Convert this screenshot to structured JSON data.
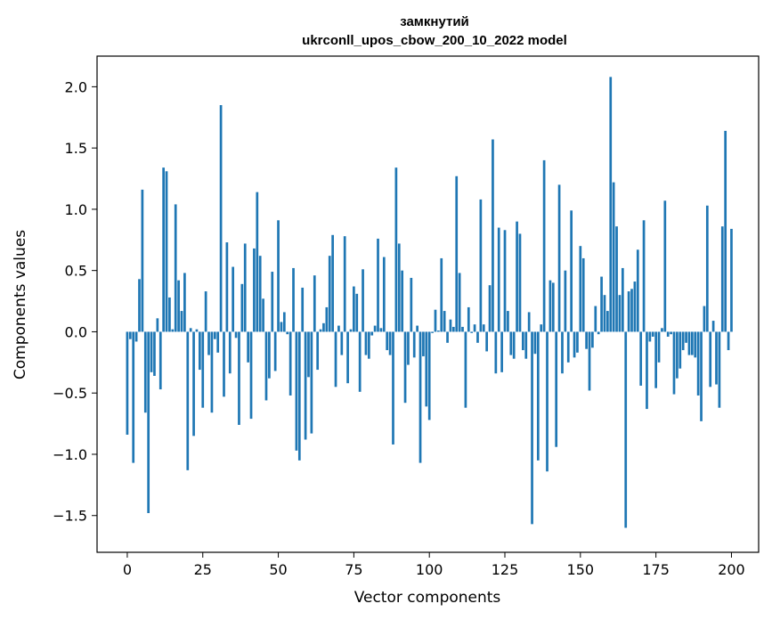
{
  "chart_data": {
    "type": "bar",
    "title_lines": [
      "замкнутий",
      "ukrconll_upos_cbow_200_10_2022 model"
    ],
    "xlabel": "Vector components",
    "ylabel": "Components values",
    "xlim": [
      -10,
      209
    ],
    "ylim": [
      -1.8,
      2.25
    ],
    "xticks": [
      0,
      25,
      50,
      75,
      100,
      125,
      150,
      175,
      200
    ],
    "yticks": [
      -1.5,
      -1.0,
      -0.5,
      0.0,
      0.5,
      1.0,
      1.5,
      2.0
    ],
    "ytick_labels": [
      "−1.5",
      "−1.0",
      "−0.5",
      "0.0",
      "0.5",
      "1.0",
      "1.5",
      "2.0"
    ],
    "bar_color": "#1f77b4",
    "grid": false,
    "x_start": 0,
    "values": [
      -0.84,
      -0.06,
      -1.07,
      -0.08,
      0.43,
      1.16,
      -0.66,
      -1.48,
      -0.33,
      -0.36,
      0.11,
      -0.47,
      1.34,
      1.31,
      0.28,
      0.02,
      1.04,
      0.42,
      0.17,
      0.48,
      -1.13,
      0.03,
      -0.85,
      0.02,
      -0.31,
      -0.62,
      0.33,
      -0.19,
      -0.66,
      -0.06,
      -0.17,
      1.85,
      -0.53,
      0.73,
      -0.34,
      0.53,
      -0.05,
      -0.76,
      0.39,
      0.72,
      -0.25,
      -0.71,
      0.68,
      1.14,
      0.62,
      0.27,
      -0.56,
      -0.38,
      0.49,
      -0.32,
      0.91,
      0.08,
      0.16,
      -0.02,
      -0.52,
      0.52,
      -0.97,
      -1.05,
      0.36,
      -0.88,
      -0.37,
      -0.83,
      0.46,
      -0.31,
      0.02,
      0.07,
      0.2,
      0.62,
      0.79,
      -0.45,
      0.05,
      -0.19,
      0.78,
      -0.42,
      0.02,
      0.37,
      0.31,
      -0.49,
      0.51,
      -0.19,
      -0.22,
      -0.03,
      0.05,
      0.76,
      0.03,
      0.61,
      -0.15,
      -0.19,
      -0.92,
      1.34,
      0.72,
      0.5,
      -0.58,
      -0.27,
      0.44,
      -0.21,
      0.05,
      -1.07,
      -0.2,
      -0.61,
      -0.72,
      -0.01,
      0.18,
      0.01,
      0.6,
      0.17,
      -0.09,
      0.1,
      0.04,
      1.27,
      0.48,
      0.04,
      -0.62,
      0.2,
      -0.01,
      0.06,
      -0.09,
      1.08,
      0.06,
      -0.16,
      0.38,
      1.57,
      -0.34,
      0.85,
      -0.33,
      0.83,
      0.17,
      -0.19,
      -0.22,
      0.9,
      0.8,
      -0.15,
      -0.22,
      0.16,
      -1.57,
      -0.18,
      -1.05,
      0.06,
      1.4,
      -1.14,
      0.42,
      0.4,
      -0.94,
      1.2,
      -0.34,
      0.5,
      -0.25,
      0.99,
      -0.21,
      -0.17,
      0.7,
      0.6,
      -0.14,
      -0.48,
      -0.13,
      0.21,
      -0.02,
      0.45,
      0.3,
      0.17,
      2.08,
      1.22,
      0.86,
      0.3,
      0.52,
      -1.6,
      0.33,
      0.35,
      0.41,
      0.67,
      -0.44,
      0.91,
      -0.63,
      -0.08,
      -0.04,
      -0.46,
      -0.25,
      0.03,
      1.07,
      -0.04,
      -0.02,
      -0.51,
      -0.38,
      -0.3,
      -0.15,
      -0.09,
      -0.19,
      -0.19,
      -0.21,
      -0.52,
      -0.73,
      0.21,
      1.03,
      -0.45,
      0.09,
      -0.43,
      -0.62,
      0.86,
      1.64,
      -0.15,
      0.84
    ]
  }
}
